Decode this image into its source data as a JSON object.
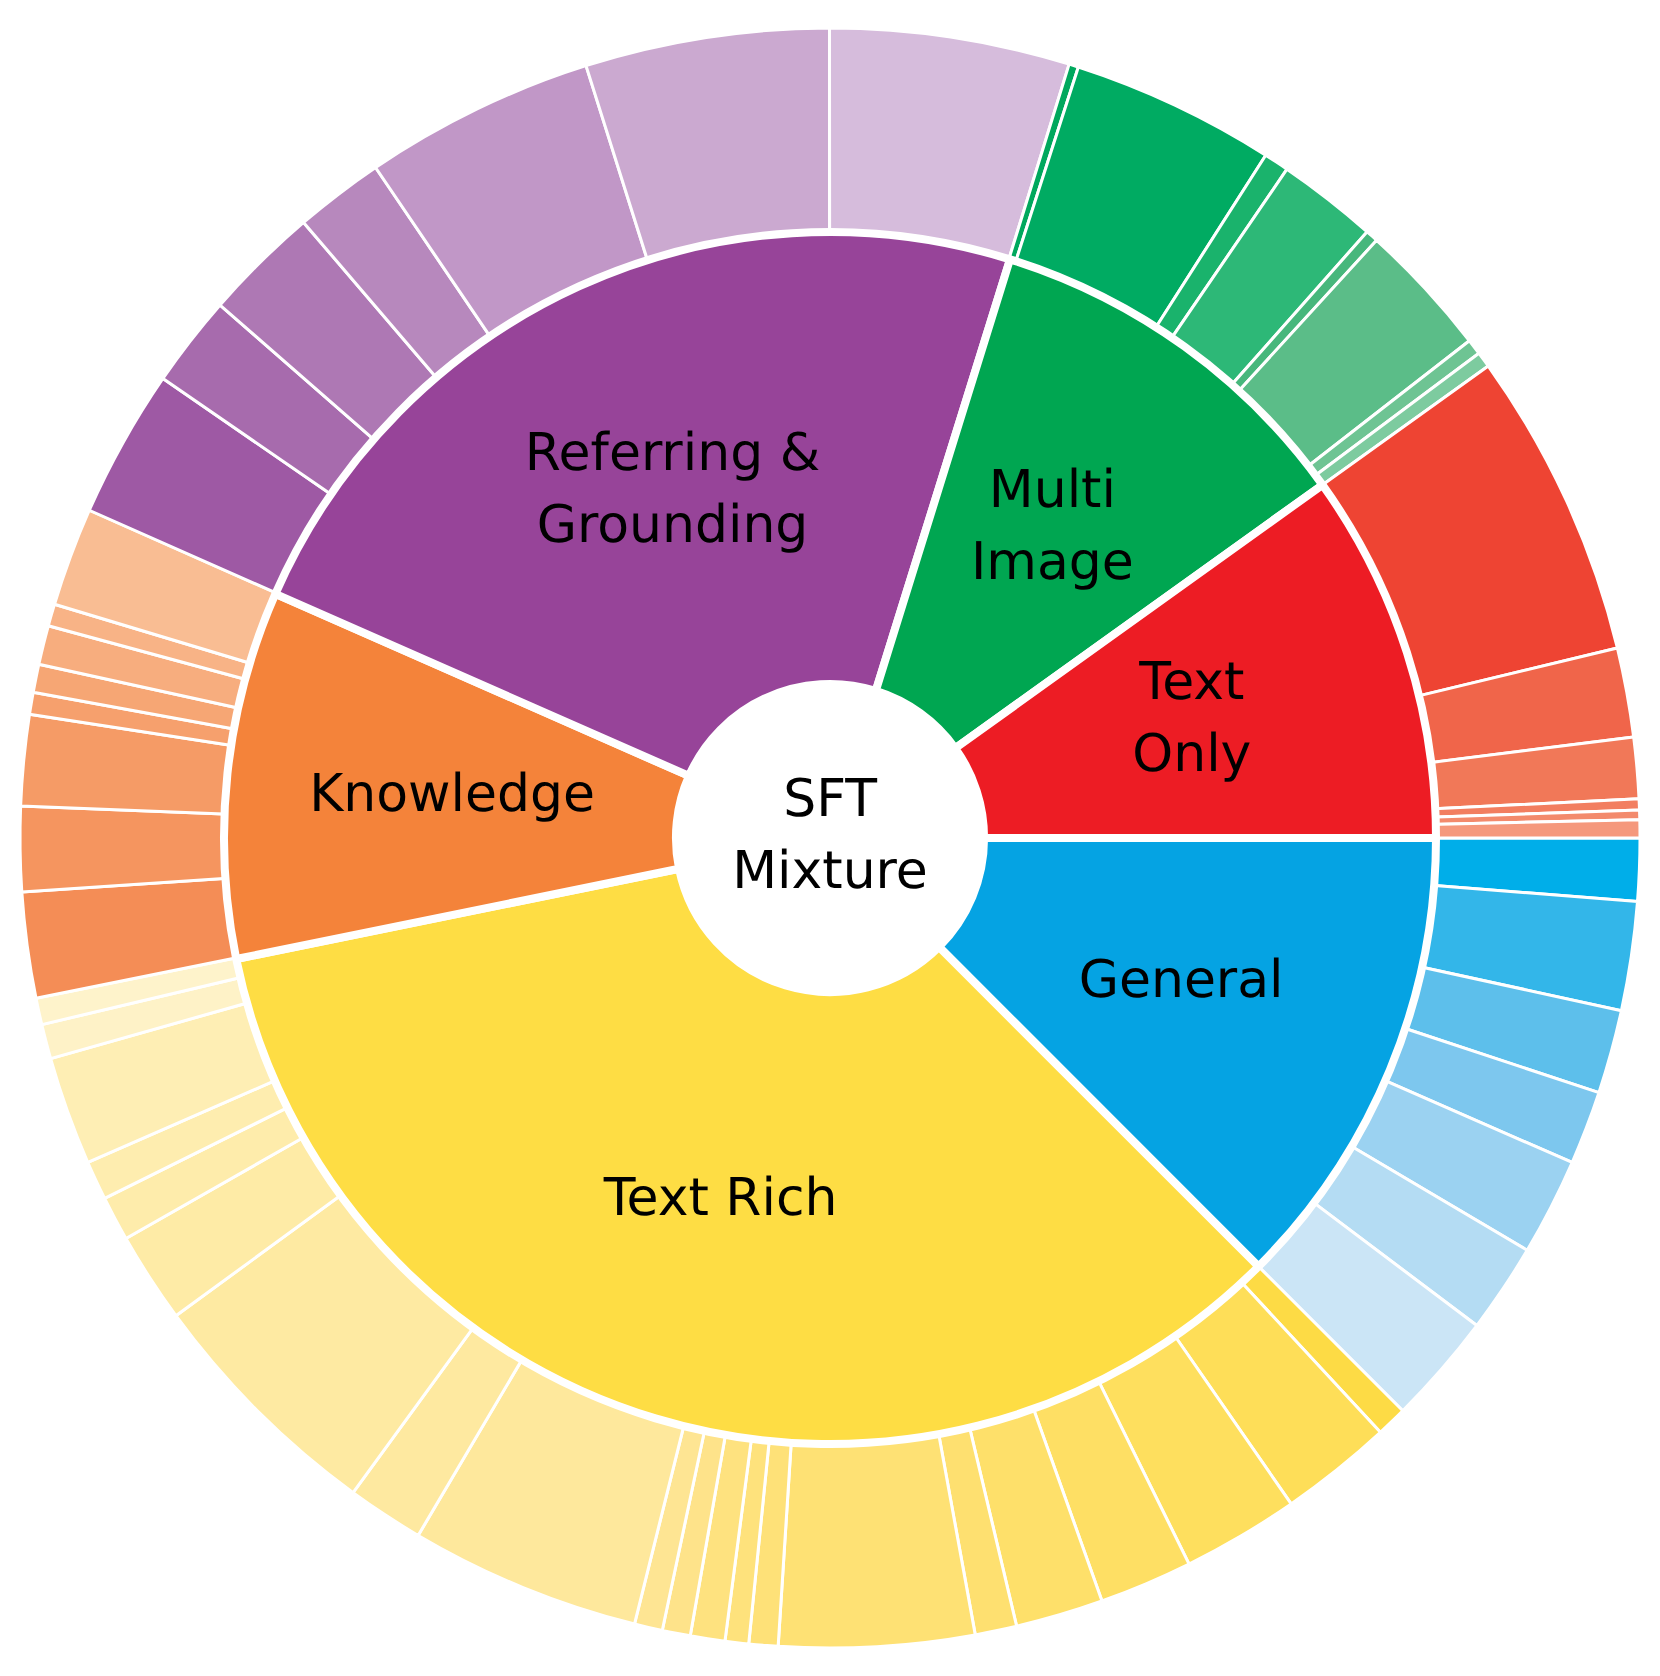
{
  "chart_data": [
    {
      "type": "donut",
      "title": "SFT Mixture",
      "categories": [
        "General",
        "Text Rich",
        "Knowledge",
        "Referring & Grounding",
        "Multi Image",
        "Text Only"
      ],
      "values": [
        12.5,
        34.3,
        9.8,
        23.2,
        10.3,
        9.9
      ],
      "colors": [
        "#05a3e3",
        "#fedd44",
        "#f4833a",
        "#974499",
        "#00a651",
        "#ed1c24"
      ]
    },
    {
      "type": "donut",
      "categories": [
        null,
        null,
        null,
        null,
        null,
        null,
        null,
        null,
        null,
        null,
        null,
        null,
        null,
        null,
        null,
        null,
        null,
        null,
        null,
        null,
        null,
        null,
        null,
        null,
        null,
        null,
        null,
        null,
        null,
        null,
        null,
        null,
        null,
        null,
        null,
        null,
        null,
        null,
        null,
        null,
        null,
        null,
        null,
        null,
        null,
        null,
        null,
        null,
        null,
        null,
        null,
        null,
        null,
        null,
        null,
        null,
        null
      ],
      "values": [
        1.25,
        2.17,
        1.67,
        1.47,
        1.94,
        1.78,
        2.22,
        0.61,
        2.25,
        2.33,
        1.86,
        1.75,
        0.83,
        3.89,
        0.58,
        0.47,
        0.69,
        0.56,
        0.56,
        4.61,
        1.53,
        4.94,
        1.81,
        0.89,
        0.78,
        2.17,
        0.69,
        0.53,
        2.11,
        1.69,
        1.81,
        0.44,
        0.56,
        0.78,
        0.44,
        1.97,
        2.97,
        1.83,
        2.31,
        1.78,
        4.61,
        4.86,
        4.78,
        0.19,
        4.08,
        0.5,
        2.0,
        0.25,
        2.69,
        0.31,
        0.31,
        6.13,
        1.78,
        1.22,
        0.22,
        0.19,
        0.36
      ],
      "colors": [
        "#00aee9",
        "#33b6e9",
        "#5dbfeb",
        "#7dc7ee",
        "#9bd2f1",
        "#b4dcf3",
        "#cbe5f6",
        "#fddb45",
        "#fede58",
        "#fedf5e",
        "#fedf64",
        "#fee06a",
        "#fee070",
        "#fee174",
        "#fee178",
        "#fee27c",
        "#fee27f",
        "#fee38a",
        "#fee593",
        "#fee89c",
        "#fee9a0",
        "#feeaa2",
        "#feeba6",
        "#feecab",
        "#feedaf",
        "#feeeb4",
        "#fef2c7",
        "#fef3cb",
        "#f48d56",
        "#f5955f",
        "#f59b66",
        "#f6a06d",
        "#f6a674",
        "#f7ad7e",
        "#f8b386",
        "#f9bd93",
        "#9e59a4",
        "#a76bad",
        "#ae78b4",
        "#b788bd",
        "#c197c7",
        "#cba9d0",
        "#d6bcdc",
        "#00a85d",
        "#00ab62",
        "#1ab36c",
        "#2db877",
        "#47b77c",
        "#5bbd88",
        "#6ec493",
        "#7dcb9f",
        "#ee4433",
        "#f0654a",
        "#f17858",
        "#f27e60",
        "#f38a6c",
        "#f5987c"
      ]
    }
  ]
}
